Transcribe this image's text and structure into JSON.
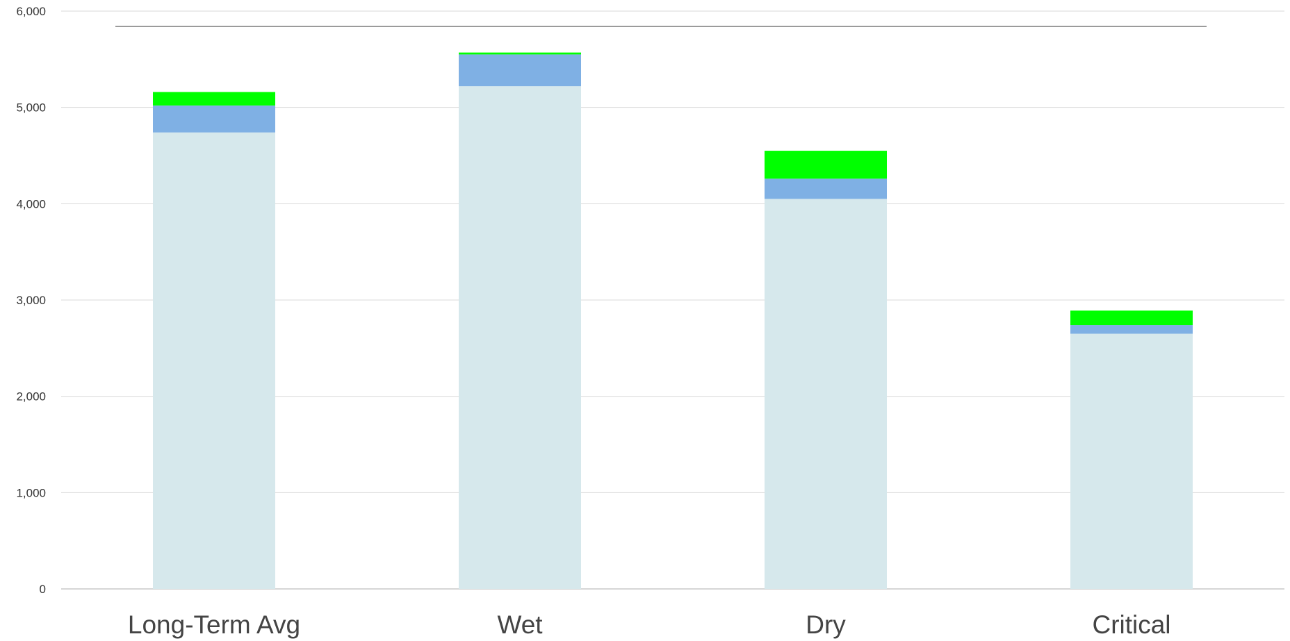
{
  "chart_data": {
    "type": "bar",
    "stacked": true,
    "categories": [
      "Long-Term Avg",
      "Wet",
      "Dry",
      "Critical"
    ],
    "series": [
      {
        "values": [
          4740,
          5220,
          4050,
          2650
        ],
        "color": "#d6e8ec"
      },
      {
        "values": [
          280,
          330,
          210,
          90
        ],
        "color": "#7fb0e4"
      },
      {
        "values": [
          140,
          20,
          290,
          150
        ],
        "color": "#00ff00"
      }
    ],
    "reference_line": {
      "value": 5840,
      "color": "#808080"
    },
    "ylim": [
      0,
      6000
    ],
    "yticks": [
      0,
      1000,
      2000,
      3000,
      4000,
      5000,
      6000
    ],
    "ytick_labels": [
      "0",
      "1,000",
      "2,000",
      "3,000",
      "4,000",
      "5,000",
      "6,000"
    ],
    "grid": true,
    "title": "",
    "xlabel": "",
    "ylabel": ""
  }
}
